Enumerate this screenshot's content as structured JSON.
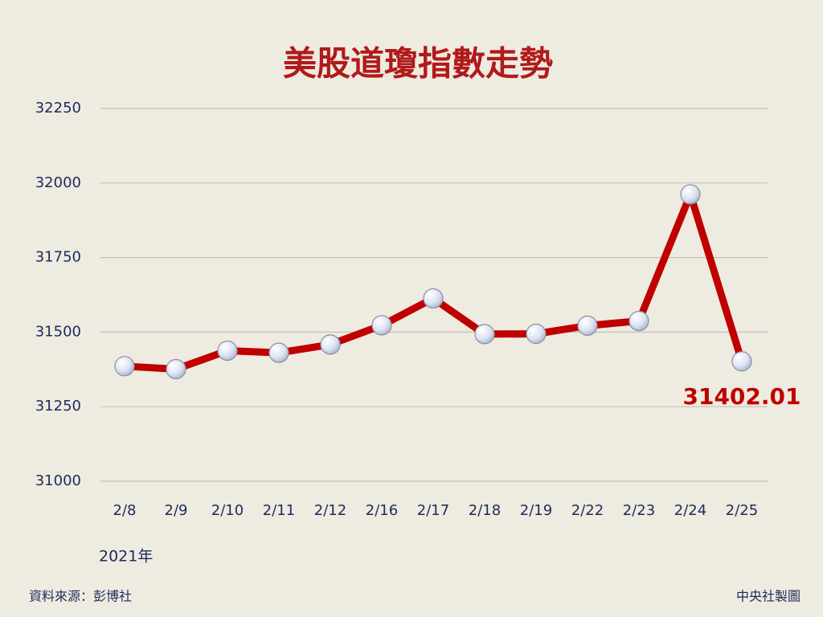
{
  "chart_data": {
    "type": "line",
    "title": "美股道瓊指數走勢",
    "categories": [
      "2/8",
      "2/9",
      "2/10",
      "2/11",
      "2/12",
      "2/16",
      "2/17",
      "2/18",
      "2/19",
      "2/22",
      "2/23",
      "2/24",
      "2/25"
    ],
    "series": [
      {
        "color": "#c00000",
        "values": [
          31385.76,
          31375.83,
          31437.8,
          31430.7,
          31458.4,
          31522.75,
          31613.02,
          31493.34,
          31494.32,
          31521.69,
          31537.35,
          31961.86,
          31402.01
        ]
      }
    ],
    "ylim": [
      31000,
      32250
    ],
    "yticks": [
      31000,
      31250,
      31500,
      31750,
      32000,
      32250
    ],
    "grid": true,
    "xlabel": "2021年",
    "source": "資料來源：彭博社",
    "credit": "中央社製圖"
  }
}
